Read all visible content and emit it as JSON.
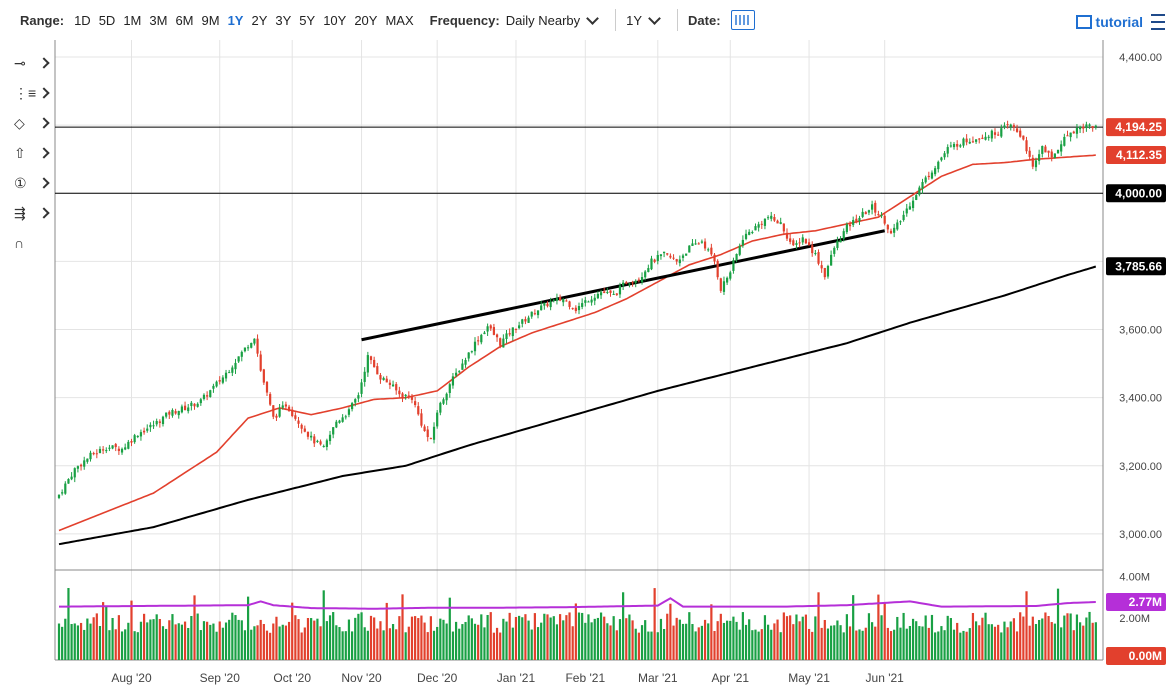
{
  "toolbar": {
    "range_label": "Range:",
    "ranges": [
      "1D",
      "5D",
      "1M",
      "3M",
      "6M",
      "9M",
      "1Y",
      "2Y",
      "3Y",
      "5Y",
      "10Y",
      "20Y",
      "MAX"
    ],
    "active_range": "1Y",
    "frequency_label": "Frequency:",
    "frequency_value": "Daily Nearby",
    "period_value": "1Y",
    "date_label": "Date:",
    "tutorial_label": "tutorial"
  },
  "tools": [
    {
      "icon": "line-tool-icon",
      "glyph": "⊸"
    },
    {
      "icon": "fib-tool-icon",
      "glyph": "⋮≡"
    },
    {
      "icon": "shape-tool-icon",
      "glyph": "◇"
    },
    {
      "icon": "arrow-tool-icon",
      "glyph": "⇧"
    },
    {
      "icon": "label-tool-icon",
      "glyph": "①"
    },
    {
      "icon": "pattern-tool-icon",
      "glyph": "⇶"
    },
    {
      "icon": "magnet-icon",
      "glyph": "∩"
    }
  ],
  "chart_data": {
    "type": "candlestick",
    "price_axis": {
      "ticks": [
        "4,400.00",
        "4,200.00",
        "4,000.00",
        "3,800.00",
        "3,600.00",
        "3,400.00",
        "3,200.00",
        "3,000.00"
      ],
      "values": [
        4400,
        4200,
        4000,
        3800,
        3600,
        3400,
        3200,
        3000
      ],
      "range": [
        2900,
        4450
      ]
    },
    "x_labels": [
      "Aug '20",
      "Sep '20",
      "Oct '20",
      "Nov '20",
      "Dec '20",
      "Jan '21",
      "Feb '21",
      "Mar '21",
      "Apr '21",
      "May '21",
      "Jun '21"
    ],
    "close_anchors": [
      [
        0,
        3115
      ],
      [
        5,
        3190
      ],
      [
        10,
        3230
      ],
      [
        15,
        3255
      ],
      [
        20,
        3250
      ],
      [
        25,
        3295
      ],
      [
        30,
        3320
      ],
      [
        35,
        3355
      ],
      [
        40,
        3370
      ],
      [
        45,
        3390
      ],
      [
        52,
        3460
      ],
      [
        57,
        3520
      ],
      [
        62,
        3580
      ],
      [
        64,
        3480
      ],
      [
        68,
        3340
      ],
      [
        72,
        3380
      ],
      [
        76,
        3330
      ],
      [
        80,
        3280
      ],
      [
        84,
        3250
      ],
      [
        88,
        3330
      ],
      [
        92,
        3360
      ],
      [
        95,
        3410
      ],
      [
        98,
        3520
      ],
      [
        102,
        3460
      ],
      [
        105,
        3440
      ],
      [
        108,
        3410
      ],
      [
        112,
        3400
      ],
      [
        116,
        3300
      ],
      [
        118,
        3270
      ],
      [
        120,
        3360
      ],
      [
        124,
        3440
      ],
      [
        128,
        3500
      ],
      [
        132,
        3560
      ],
      [
        136,
        3610
      ],
      [
        140,
        3560
      ],
      [
        144,
        3600
      ],
      [
        148,
        3630
      ],
      [
        152,
        3660
      ],
      [
        156,
        3680
      ],
      [
        160,
        3690
      ],
      [
        164,
        3660
      ],
      [
        168,
        3690
      ],
      [
        172,
        3710
      ],
      [
        176,
        3700
      ],
      [
        180,
        3740
      ],
      [
        184,
        3750
      ],
      [
        188,
        3800
      ],
      [
        192,
        3820
      ],
      [
        196,
        3800
      ],
      [
        200,
        3840
      ],
      [
        204,
        3860
      ],
      [
        208,
        3800
      ],
      [
        210,
        3720
      ],
      [
        213,
        3770
      ],
      [
        217,
        3870
      ],
      [
        221,
        3900
      ],
      [
        225,
        3930
      ],
      [
        229,
        3910
      ],
      [
        233,
        3840
      ],
      [
        236,
        3870
      ],
      [
        240,
        3820
      ],
      [
        243,
        3760
      ],
      [
        246,
        3840
      ],
      [
        250,
        3900
      ],
      [
        254,
        3930
      ],
      [
        258,
        3960
      ],
      [
        262,
        3920
      ],
      [
        264,
        3880
      ],
      [
        267,
        3920
      ],
      [
        270,
        3970
      ],
      [
        274,
        4030
      ],
      [
        278,
        4080
      ],
      [
        282,
        4130
      ],
      [
        286,
        4150
      ],
      [
        290,
        4160
      ],
      [
        294,
        4170
      ],
      [
        298,
        4180
      ],
      [
        302,
        4200
      ],
      [
        304,
        4180
      ],
      [
        306,
        4160
      ],
      [
        309,
        4070
      ],
      [
        312,
        4140
      ],
      [
        315,
        4100
      ],
      [
        318,
        4150
      ],
      [
        321,
        4180
      ],
      [
        324,
        4195
      ],
      [
        327,
        4200
      ],
      [
        329,
        4194
      ]
    ],
    "ma50_anchors": [
      [
        0,
        3010
      ],
      [
        30,
        3120
      ],
      [
        50,
        3240
      ],
      [
        60,
        3340
      ],
      [
        70,
        3370
      ],
      [
        80,
        3350
      ],
      [
        90,
        3370
      ],
      [
        100,
        3395
      ],
      [
        110,
        3400
      ],
      [
        120,
        3420
      ],
      [
        130,
        3490
      ],
      [
        140,
        3550
      ],
      [
        150,
        3590
      ],
      [
        160,
        3620
      ],
      [
        170,
        3650
      ],
      [
        180,
        3690
      ],
      [
        190,
        3740
      ],
      [
        200,
        3790
      ],
      [
        210,
        3820
      ],
      [
        220,
        3860
      ],
      [
        230,
        3880
      ],
      [
        240,
        3890
      ],
      [
        250,
        3910
      ],
      [
        260,
        3930
      ],
      [
        270,
        3990
      ],
      [
        280,
        4050
      ],
      [
        290,
        4085
      ],
      [
        300,
        4090
      ],
      [
        310,
        4100
      ],
      [
        329,
        4112
      ]
    ],
    "ma200_anchors": [
      [
        0,
        2970
      ],
      [
        30,
        3020
      ],
      [
        60,
        3100
      ],
      [
        90,
        3170
      ],
      [
        110,
        3200
      ],
      [
        130,
        3260
      ],
      [
        160,
        3340
      ],
      [
        190,
        3420
      ],
      [
        220,
        3490
      ],
      [
        250,
        3560
      ],
      [
        270,
        3620
      ],
      [
        300,
        3700
      ],
      [
        320,
        3760
      ],
      [
        329,
        3785
      ]
    ],
    "trendline": {
      "from": [
        "Nov '20",
        3570
      ],
      "to": [
        "Jun '21",
        3890
      ]
    },
    "price_labels": [
      {
        "text": "4,194.25",
        "value": 4194.25,
        "color": "#e2402d"
      },
      {
        "text": "4,112.35",
        "value": 4112.35,
        "color": "#e2402d"
      },
      {
        "text": "4,000.00",
        "value": 4000,
        "color": "#000000"
      },
      {
        "text": "3,785.66",
        "value": 3785.66,
        "color": "#000000"
      }
    ],
    "volume_axis": {
      "ticks": [
        "4.00M",
        "2.00M"
      ],
      "values": [
        4.0,
        2.0
      ],
      "range": [
        0,
        4.3
      ]
    },
    "volume_labels": [
      {
        "text": "2.77M",
        "value": 2.77,
        "color": "#b52fd8"
      },
      {
        "text": "0.00M",
        "value": 0,
        "color": "#e2402d"
      }
    ],
    "avg_volume_anchors": [
      [
        0,
        2.55
      ],
      [
        60,
        2.62
      ],
      [
        64,
        2.8
      ],
      [
        68,
        2.62
      ],
      [
        80,
        2.48
      ],
      [
        100,
        2.45
      ],
      [
        120,
        2.5
      ],
      [
        140,
        2.5
      ],
      [
        160,
        2.52
      ],
      [
        190,
        2.6
      ],
      [
        194,
        2.95
      ],
      [
        198,
        2.55
      ],
      [
        230,
        2.55
      ],
      [
        250,
        2.62
      ],
      [
        270,
        2.8
      ],
      [
        280,
        2.55
      ],
      [
        310,
        2.58
      ],
      [
        320,
        2.72
      ],
      [
        329,
        2.77
      ]
    ],
    "colors": {
      "up": "#19a044",
      "down": "#e2402d",
      "ma50": "#e2402d",
      "ma200": "#000000",
      "avgvol": "#b52fd8",
      "grid": "#e4e4e4"
    }
  }
}
